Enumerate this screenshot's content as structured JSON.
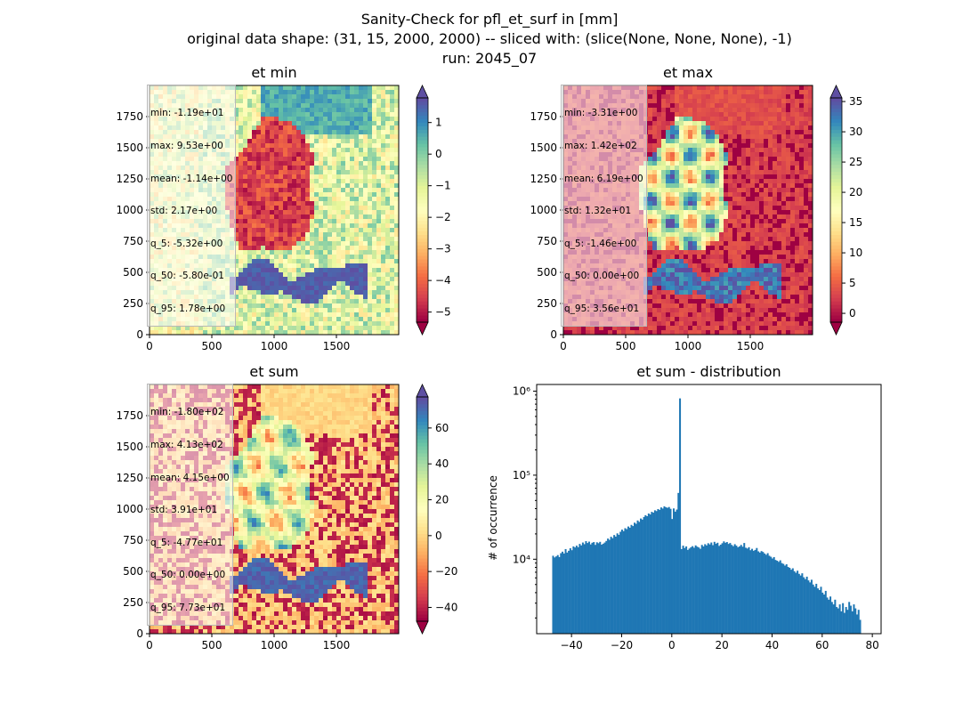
{
  "figure": {
    "title_line1": "Sanity-Check for pfl_et_surf in [mm]",
    "title_line2": "original data shape: (31, 15, 2000, 2000) -- sliced with: (slice(None, None, None), -1)",
    "title_line3": "run: 2045_07"
  },
  "colors": {
    "spectral": [
      "#9e0142",
      "#d53e4f",
      "#f46d43",
      "#fdae61",
      "#fee08b",
      "#ffffbf",
      "#e6f598",
      "#abdda4",
      "#66c2a5",
      "#3288bd",
      "#5e4fa2"
    ],
    "hist_bar": "#1f77b4"
  },
  "panels": [
    {
      "key": "min",
      "title": "et min",
      "stats": [
        "min: -1.19e+01",
        "max: 9.53e+00",
        "mean: -1.14e+00",
        "std: 2.17e+00",
        "q_5: -5.32e+00",
        "q_50: -5.80e-01",
        "q_95: 1.78e+00"
      ],
      "vmin": -5.32,
      "vmax": 1.78,
      "cbar_ticks": [
        "-5",
        "-4",
        "-3",
        "-2",
        "-1",
        "0",
        "1"
      ],
      "cbar_tick_values": [
        -5,
        -4,
        -3,
        -2,
        -1,
        0,
        1
      ]
    },
    {
      "key": "max",
      "title": "et max",
      "stats": [
        "min: -3.31e+00",
        "max: 1.42e+02",
        "mean: 6.19e+00",
        "std: 1.32e+01",
        "q_5: -1.46e+00",
        "q_50: 0.00e+00",
        "q_95: 3.56e+01"
      ],
      "vmin": -1.46,
      "vmax": 35.6,
      "cbar_ticks": [
        "0",
        "5",
        "10",
        "15",
        "20",
        "25",
        "30",
        "35"
      ],
      "cbar_tick_values": [
        0,
        5,
        10,
        15,
        20,
        25,
        30,
        35
      ]
    },
    {
      "key": "sum",
      "title": "et sum",
      "stats": [
        "min: -1.80e+02",
        "max: 4.13e+02",
        "mean: 4.15e+00",
        "std: 3.91e+01",
        "q_5: -4.77e+01",
        "q_50: 0.00e+00",
        "q_95: 7.73e+01"
      ],
      "vmin": -47.7,
      "vmax": 77.3,
      "cbar_ticks": [
        "-40",
        "-20",
        "0",
        "20",
        "40",
        "60"
      ],
      "cbar_tick_values": [
        -40,
        -20,
        0,
        20,
        40,
        60
      ]
    }
  ],
  "map_axes": {
    "x_ticks": [
      "0",
      "500",
      "1000",
      "1500"
    ],
    "x_tick_values": [
      0,
      500,
      1000,
      1500
    ],
    "y_ticks": [
      "0",
      "250",
      "500",
      "750",
      "1000",
      "1250",
      "1500",
      "1750"
    ],
    "y_tick_values": [
      0,
      250,
      500,
      750,
      1000,
      1250,
      1500,
      1750
    ],
    "xlim": [
      0,
      2000
    ],
    "ylim": [
      0,
      2000
    ]
  },
  "chart_data": [
    {
      "type": "heatmap",
      "title": "et min",
      "xlim": [
        0,
        2000
      ],
      "ylim": [
        0,
        2000
      ],
      "colormap": "Spectral",
      "color_range": [
        -5.32,
        1.78
      ],
      "colorbar_ticks": [
        -5,
        -4,
        -3,
        -2,
        -1,
        0,
        1
      ]
    },
    {
      "type": "heatmap",
      "title": "et max",
      "xlim": [
        0,
        2000
      ],
      "ylim": [
        0,
        2000
      ],
      "colormap": "Spectral",
      "color_range": [
        -1.46,
        35.6
      ],
      "colorbar_ticks": [
        0,
        5,
        10,
        15,
        20,
        25,
        30,
        35
      ]
    },
    {
      "type": "heatmap",
      "title": "et sum",
      "xlim": [
        0,
        2000
      ],
      "ylim": [
        0,
        2000
      ],
      "colormap": "Spectral",
      "color_range": [
        -47.7,
        77.3
      ],
      "colorbar_ticks": [
        -40,
        -20,
        0,
        20,
        40,
        60
      ]
    },
    {
      "type": "bar",
      "title": "et sum - distribution",
      "xlabel": "",
      "ylabel": "# of occurrence",
      "yscale": "log",
      "xlim": [
        -53.9,
        83.5
      ],
      "ylim": [
        1300,
        1200000
      ],
      "x_ticks": [
        -40,
        -20,
        0,
        20,
        40,
        60,
        80
      ],
      "x_tick_labels": [
        "−40",
        "−20",
        "0",
        "20",
        "40",
        "60",
        "80"
      ],
      "y_ticks": [
        10000,
        100000,
        1000000
      ],
      "y_tick_labels": [
        "10⁴",
        "10⁵",
        "10⁶"
      ],
      "bin_start": -47.7,
      "bin_width": 0.625,
      "values": [
        11000,
        10500,
        10800,
        11200,
        10600,
        11800,
        12300,
        11700,
        13200,
        12000,
        12600,
        13500,
        12800,
        14200,
        13800,
        14500,
        13900,
        15200,
        14600,
        15800,
        15100,
        16400,
        15600,
        16200,
        15000,
        15700,
        16000,
        14800,
        15900,
        15500,
        16100,
        14900,
        15300,
        15800,
        16500,
        17600,
        17000,
        18500,
        17800,
        19400,
        18600,
        20300,
        19500,
        21200,
        22500,
        21600,
        23400,
        22800,
        24500,
        23700,
        25600,
        24800,
        27200,
        26400,
        28900,
        27800,
        30500,
        29600,
        31800,
        33400,
        32500,
        35000,
        34100,
        36600,
        35800,
        38200,
        37400,
        39500,
        38600,
        41300,
        40100,
        42600,
        41500,
        40900,
        41800,
        39800,
        30100,
        40200,
        36800,
        39000,
        61500,
        820000,
        13200,
        14500,
        13600,
        14200,
        12900,
        13400,
        13900,
        14300,
        13700,
        14600,
        14100,
        13800,
        13300,
        14800,
        14200,
        15100,
        14600,
        15500,
        15000,
        15800,
        14700,
        16100,
        15300,
        15700,
        14400,
        14900,
        15500,
        16300,
        15700,
        16000,
        15200,
        15600,
        14800,
        14300,
        15100,
        14500,
        13900,
        14200,
        14800,
        14100,
        15600,
        13700,
        13400,
        13900,
        12800,
        13300,
        12600,
        12900,
        13600,
        12400,
        12000,
        12500,
        12200,
        11700,
        11300,
        11800,
        11000,
        10700,
        10200,
        10600,
        9800,
        9600,
        9300,
        9700,
        9000,
        8800,
        8400,
        8700,
        8100,
        7900,
        7500,
        7800,
        7200,
        6900,
        7300,
        6700,
        6400,
        6800,
        6100,
        5800,
        6200,
        5600,
        5300,
        5700,
        5000,
        4700,
        5100,
        4500,
        4300,
        4700,
        4000,
        3800,
        4200,
        3500,
        3300,
        3600,
        3100,
        2900,
        3300,
        2700,
        2600,
        2900,
        2400,
        3000,
        2300,
        2700,
        2500,
        3100,
        2800,
        2400,
        2900,
        2600,
        2200,
        2500,
        1900
      ]
    }
  ]
}
